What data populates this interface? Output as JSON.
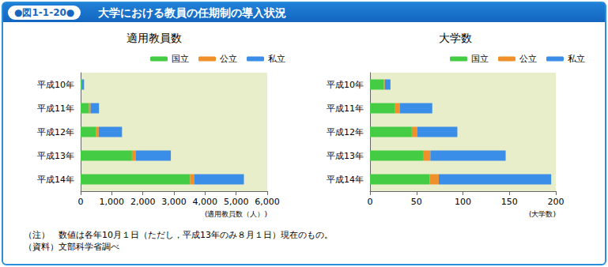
{
  "figure": {
    "label": "●図1-1-20●",
    "title": "大学における教員の任期制の導入状況"
  },
  "chart_data": [
    {
      "type": "bar",
      "title": "適用教員数",
      "orientation": "horizontal",
      "stacked": true,
      "legend": "top",
      "grid": false,
      "categories": [
        "平成10年",
        "平成11年",
        "平成12年",
        "平成13年",
        "平成14年"
      ],
      "series": [
        {
          "name": "国立",
          "color": "#44cc44",
          "values": [
            50,
            270,
            500,
            1650,
            3520
          ]
        },
        {
          "name": "公立",
          "color": "#f0902a",
          "values": [
            0,
            50,
            80,
            130,
            130
          ]
        },
        {
          "name": "私立",
          "color": "#3a8ee8",
          "values": [
            60,
            270,
            750,
            1120,
            1600
          ]
        }
      ],
      "xlabel": "(適用教員数（人）)",
      "xlim": [
        0,
        6000
      ],
      "xticks": [
        0,
        {
          "value": 1000,
          "label": "1,000"
        },
        {
          "value": 2000,
          "label": "2,000"
        },
        {
          "value": 3000,
          "label": "3,000"
        },
        {
          "value": 4000,
          "label": "4,000"
        },
        {
          "value": 5000,
          "label": "5,000"
        },
        {
          "value": 6000,
          "label": "6,000"
        }
      ]
    },
    {
      "type": "bar",
      "title": "大学数",
      "orientation": "horizontal",
      "stacked": true,
      "legend": "top",
      "grid": false,
      "categories": [
        "平成10年",
        "平成11年",
        "平成12年",
        "平成13年",
        "平成14年"
      ],
      "series": [
        {
          "name": "国立",
          "color": "#44cc44",
          "values": [
            15,
            27,
            45,
            57,
            64
          ]
        },
        {
          "name": "公立",
          "color": "#f0902a",
          "values": [
            1,
            5,
            6,
            8,
            10
          ]
        },
        {
          "name": "私立",
          "color": "#3a8ee8",
          "values": [
            6,
            35,
            43,
            81,
            121
          ]
        }
      ],
      "xlabel": "(大学数)",
      "xlim": [
        0,
        200
      ],
      "xticks": [
        0,
        50,
        100,
        150,
        200
      ]
    }
  ],
  "notes": [
    "（注）　数値は各年10月１日（ただし，平成13年のみ８月１日）現在のもの。",
    "（資料）文部科学省調べ"
  ]
}
